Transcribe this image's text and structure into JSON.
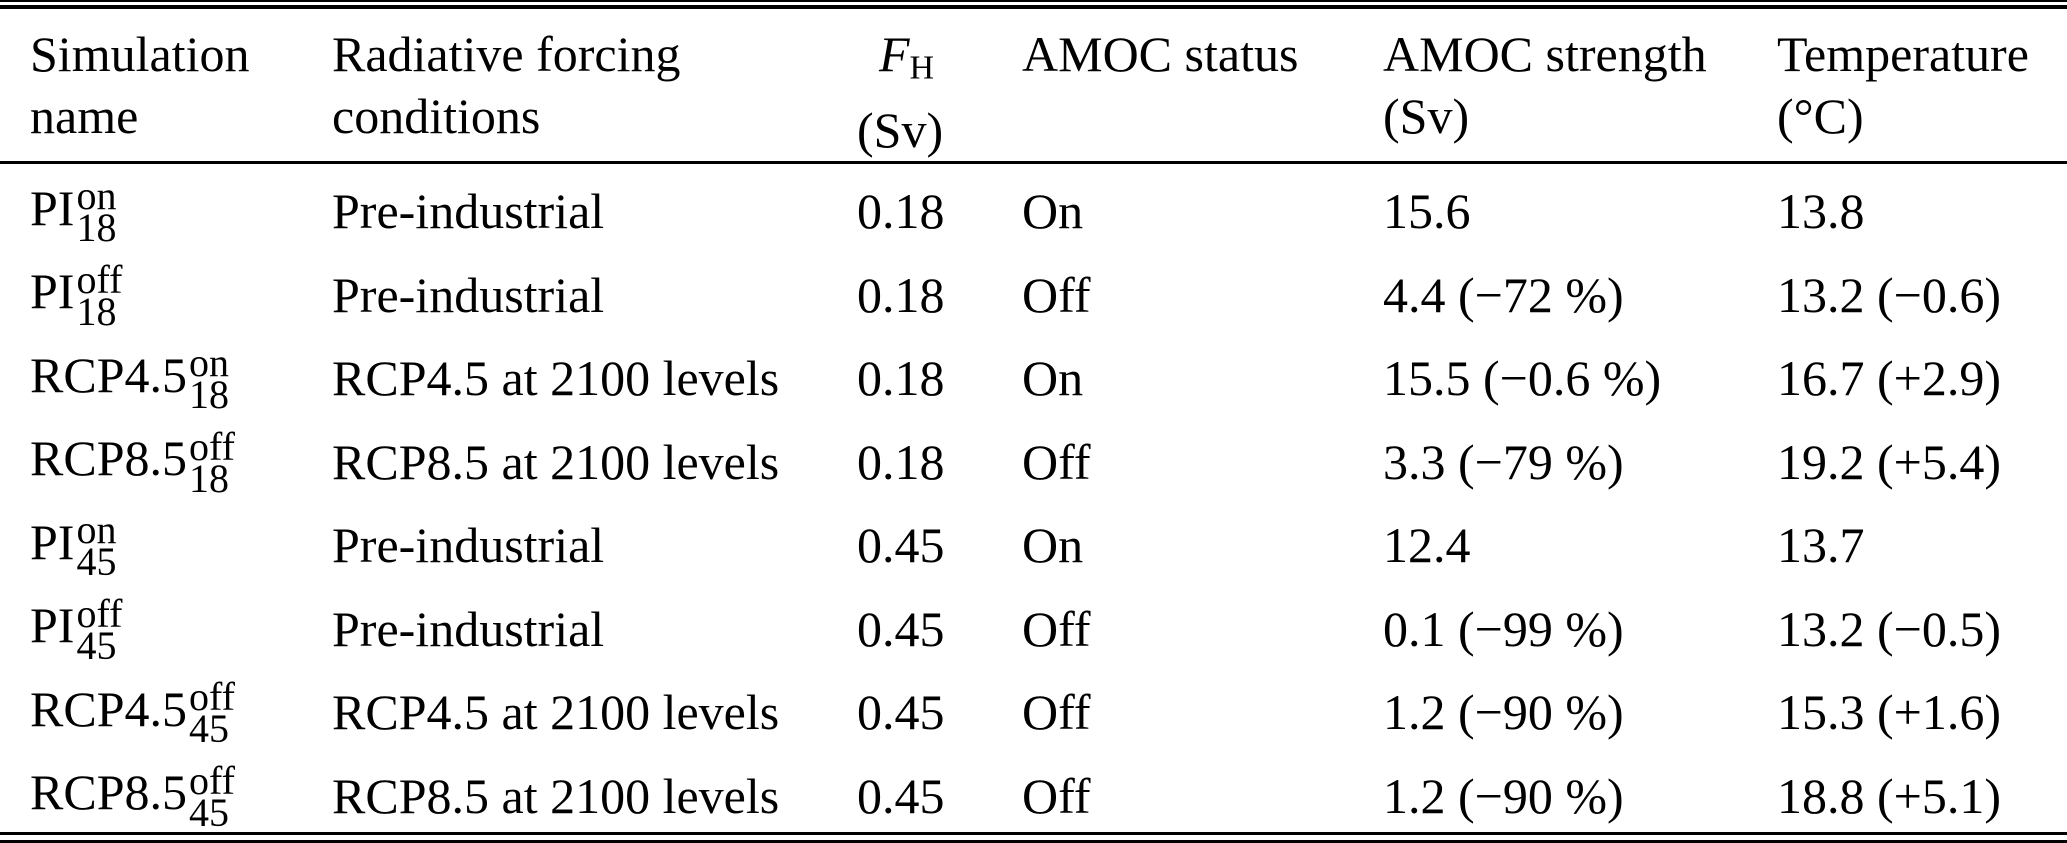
{
  "table": {
    "title_semantic": "AMOC hosing simulations overview",
    "columns": [
      {
        "id": "simulation_name",
        "line1": "Simulation",
        "line2": "name"
      },
      {
        "id": "radiative_forcing",
        "line1": "Radiative forcing",
        "line2": "conditions"
      },
      {
        "id": "fh",
        "line1_base": "F",
        "line1_sub": "H",
        "line2": "(Sv)"
      },
      {
        "id": "amoc_status",
        "line1": "AMOC status",
        "line2": ""
      },
      {
        "id": "amoc_strength",
        "line1": "AMOC strength",
        "line2": "(Sv)"
      },
      {
        "id": "temperature",
        "line1": "Temperature",
        "line2": "(°C)"
      }
    ],
    "rows": [
      {
        "name": {
          "base": "PI",
          "sup": "on",
          "sub": "18"
        },
        "forcing": "Pre-industrial",
        "fh": "0.18",
        "status": "On",
        "strength": "15.6",
        "temperature": "13.8"
      },
      {
        "name": {
          "base": "PI",
          "sup": "off",
          "sub": "18"
        },
        "forcing": "Pre-industrial",
        "fh": "0.18",
        "status": "Off",
        "strength": "4.4 (−72 %)",
        "temperature": "13.2 (−0.6)"
      },
      {
        "name": {
          "base": "RCP4.5",
          "sup": "on",
          "sub": "18"
        },
        "forcing": "RCP4.5 at 2100 levels",
        "fh": "0.18",
        "status": "On",
        "strength": "15.5 (−0.6 %)",
        "temperature": "16.7 (+2.9)"
      },
      {
        "name": {
          "base": "RCP8.5",
          "sup": "off",
          "sub": "18"
        },
        "forcing": "RCP8.5 at 2100 levels",
        "fh": "0.18",
        "status": "Off",
        "strength": "3.3 (−79 %)",
        "temperature": "19.2 (+5.4)"
      },
      {
        "name": {
          "base": "PI",
          "sup": "on",
          "sub": "45"
        },
        "forcing": "Pre-industrial",
        "fh": "0.45",
        "status": "On",
        "strength": "12.4",
        "temperature": "13.7"
      },
      {
        "name": {
          "base": "PI",
          "sup": "off",
          "sub": "45"
        },
        "forcing": "Pre-industrial",
        "fh": "0.45",
        "status": "Off",
        "strength": "0.1 (−99 %)",
        "temperature": "13.2 (−0.5)"
      },
      {
        "name": {
          "base": "RCP4.5",
          "sup": "off",
          "sub": "45"
        },
        "forcing": "RCP4.5 at 2100 levels",
        "fh": "0.45",
        "status": "Off",
        "strength": "1.2 (−90 %)",
        "temperature": "15.3 (+1.6)"
      },
      {
        "name": {
          "base": "RCP8.5",
          "sup": "off",
          "sub": "45"
        },
        "forcing": "RCP8.5 at 2100 levels",
        "fh": "0.45",
        "status": "Off",
        "strength": "1.2 (−90 %)",
        "temperature": "18.8 (+5.1)"
      }
    ],
    "colors": {
      "text": "#000000",
      "background": "#ffffff",
      "rule": "#000000"
    }
  }
}
